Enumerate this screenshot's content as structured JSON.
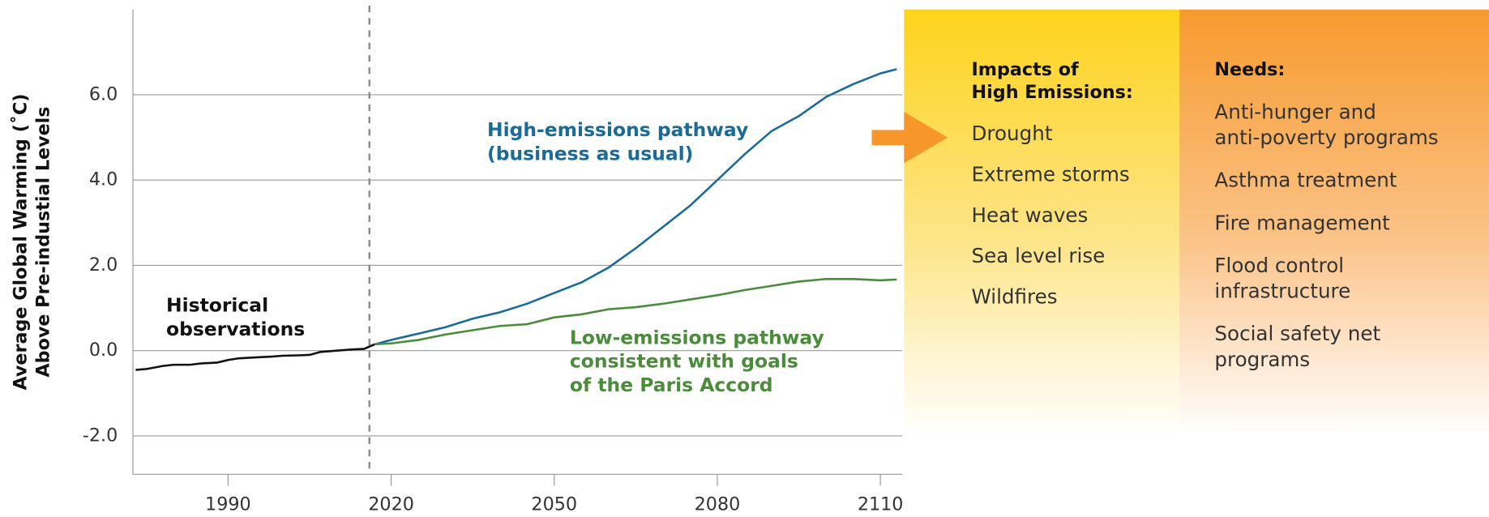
{
  "chart_data": {
    "type": "line",
    "y_label": [
      "Average Global Warming (˚C)",
      "Above Pre-industial Levels"
    ],
    "xlim": [
      1972.5,
      2114
    ],
    "xticks": [
      1990,
      2020,
      2050,
      2080,
      2110
    ],
    "ylim": [
      -2.9,
      8
    ],
    "yticks": [
      {
        "value": -2,
        "label": "-2.0"
      },
      {
        "value": 0,
        "label": "0.0"
      },
      {
        "value": 2,
        "label": "2.0"
      },
      {
        "value": 4,
        "label": "4.0"
      },
      {
        "value": 6,
        "label": "6.0"
      }
    ],
    "grid": true,
    "divider_x": 2016,
    "series": [
      {
        "name": [
          "Historical",
          "observations"
        ],
        "color": "#111111",
        "x": [
          1973,
          1975,
          1978,
          1980,
          1983,
          1985,
          1988,
          1990,
          1992,
          1995,
          1998,
          2000,
          2003,
          2005,
          2007,
          2010,
          2013,
          2015,
          2017
        ],
        "values": [
          -0.45,
          -0.43,
          -0.36,
          -0.33,
          -0.33,
          -0.3,
          -0.28,
          -0.22,
          -0.18,
          -0.16,
          -0.14,
          -0.12,
          -0.11,
          -0.1,
          -0.03,
          0.0,
          0.03,
          0.04,
          0.15
        ]
      },
      {
        "name": [
          "High-emissions pathway",
          "(business as usual)"
        ],
        "color": "#1a6a9a",
        "x": [
          2017,
          2020,
          2025,
          2030,
          2035,
          2040,
          2045,
          2050,
          2055,
          2060,
          2065,
          2070,
          2075,
          2080,
          2085,
          2090,
          2095,
          2100,
          2105,
          2110,
          2113
        ],
        "values": [
          0.15,
          0.25,
          0.4,
          0.55,
          0.75,
          0.9,
          1.1,
          1.35,
          1.6,
          1.95,
          2.4,
          2.9,
          3.4,
          4.0,
          4.6,
          5.15,
          5.5,
          5.95,
          6.25,
          6.5,
          6.6
        ]
      },
      {
        "name": [
          "Low-emissions pathway",
          "consistent with goals",
          "of the Paris Accord"
        ],
        "color": "#4a8c3a",
        "x": [
          2017,
          2020,
          2025,
          2030,
          2035,
          2040,
          2045,
          2050,
          2055,
          2060,
          2065,
          2070,
          2075,
          2080,
          2085,
          2090,
          2095,
          2100,
          2105,
          2110,
          2113
        ],
        "values": [
          0.15,
          0.17,
          0.25,
          0.38,
          0.48,
          0.58,
          0.62,
          0.78,
          0.85,
          0.97,
          1.02,
          1.1,
          1.2,
          1.3,
          1.42,
          1.52,
          1.62,
          1.68,
          1.68,
          1.65,
          1.67
        ]
      }
    ]
  },
  "panels": {
    "impacts": {
      "title": [
        "Impacts of",
        "High Emissions:"
      ],
      "items": [
        [
          "Drought"
        ],
        [
          "Extreme storms"
        ],
        [
          "Heat waves"
        ],
        [
          "Sea level rise"
        ],
        [
          "Wildfires"
        ]
      ]
    },
    "needs": {
      "title": [
        "Needs:"
      ],
      "items": [
        [
          "Anti-hunger and",
          "anti-poverty programs"
        ],
        [
          "Asthma treatment"
        ],
        [
          "Fire management"
        ],
        [
          "Flood control",
          "infrastructure"
        ],
        [
          "Social safety net",
          "programs"
        ]
      ]
    }
  }
}
